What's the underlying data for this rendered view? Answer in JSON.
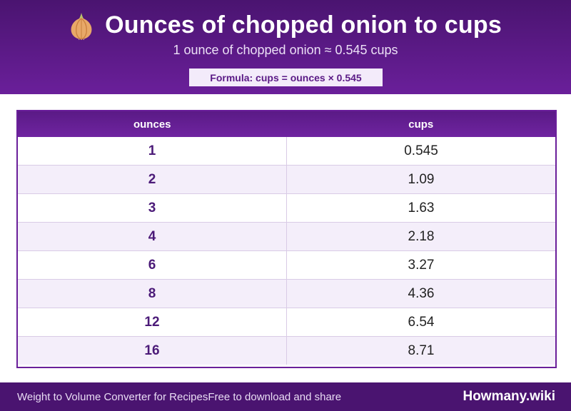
{
  "header": {
    "title": "Ounces of chopped onion to cups",
    "icon": "onion-icon",
    "subtitle": "1 ounce of chopped onion ≈ 0.545 cups",
    "formula": "Formula: cups = ounces × 0.545"
  },
  "table": {
    "columns": [
      "ounces",
      "cups"
    ],
    "rows": [
      [
        "1",
        "0.545"
      ],
      [
        "2",
        "1.09"
      ],
      [
        "3",
        "1.63"
      ],
      [
        "4",
        "2.18"
      ],
      [
        "6",
        "3.27"
      ],
      [
        "8",
        "4.36"
      ],
      [
        "12",
        "6.54"
      ],
      [
        "16",
        "8.71"
      ]
    ]
  },
  "footer": {
    "converter_text": "Weight to Volume Converter for Recipes",
    "share_text": "Free to download and share",
    "brand": "Howmany.wiki"
  },
  "colors": {
    "header_bg": "#4a1470",
    "accent": "#6a1f9a",
    "row_alt": "#f4eefa"
  }
}
